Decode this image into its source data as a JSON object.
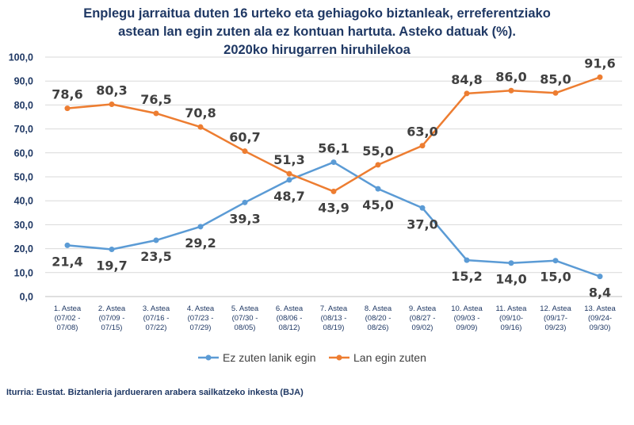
{
  "chart_data": {
    "type": "line",
    "title_lines": [
      "Enplegu jarraitua duten 16 urteko eta gehiagoko biztanleak, erreferentziako",
      "astean lan egin zuten ala ez kontuan hartuta. Asteko datuak (%).",
      "2020ko hirugarren hiruhilekoa"
    ],
    "categories": [
      [
        "1. Astea",
        "(07/02 -",
        "07/08)"
      ],
      [
        "2. Astea",
        "(07/09 -",
        "07/15)"
      ],
      [
        "3. Astea",
        "(07/16 -",
        "07/22)"
      ],
      [
        "4. Astea",
        "(07/23 -",
        "07/29)"
      ],
      [
        "5. Astea",
        "(07/30 -",
        "08/05)"
      ],
      [
        "6. Astea",
        "(08/06 -",
        "08/12)"
      ],
      [
        "7. Astea",
        "(08/13 -",
        "08/19)"
      ],
      [
        "8. Astea",
        "(08/20 -",
        "08/26)"
      ],
      [
        "9. Astea",
        "(08/27 -",
        "09/02)"
      ],
      [
        "10. Astea",
        "(09/03 -",
        "09/09)"
      ],
      [
        "11. Astea",
        "(09/10-",
        "09/16)"
      ],
      [
        "12. Astea",
        "(09/17-",
        "09/23)"
      ],
      [
        "13. Astea",
        "(09/24-",
        "09/30)"
      ]
    ],
    "yticks": [
      "0,0",
      "10,0",
      "20,0",
      "30,0",
      "40,0",
      "50,0",
      "60,0",
      "70,0",
      "80,0",
      "90,0",
      "100,0"
    ],
    "ylim": [
      0,
      100
    ],
    "grid": true,
    "legend_position": "bottom",
    "series": [
      {
        "name": "Ez zuten lanik egin",
        "color": "#5b9bd5",
        "values": [
          21.4,
          19.7,
          23.5,
          29.2,
          39.3,
          48.7,
          56.1,
          45.0,
          37.0,
          15.2,
          14.0,
          15.0,
          8.4
        ],
        "labels": [
          "21,4",
          "19,7",
          "23,5",
          "29,2",
          "39,3",
          "48,7",
          "56,1",
          "45,0",
          "37,0",
          "15,2",
          "14,0",
          "15,0",
          "8,4"
        ]
      },
      {
        "name": "Lan egin zuten",
        "color": "#ed7d31",
        "values": [
          78.6,
          80.3,
          76.5,
          70.8,
          60.7,
          51.3,
          43.9,
          55.0,
          63.0,
          84.8,
          86.0,
          85.0,
          91.6
        ],
        "labels": [
          "78,6",
          "80,3",
          "76,5",
          "70,8",
          "60,7",
          "51,3",
          "43,9",
          "55,0",
          "63,0",
          "84,8",
          "86,0",
          "85,0",
          "91,6"
        ]
      }
    ]
  },
  "source": "Iturria: Eustat. Biztanleria jardueraren arabera sailkatzeko inkesta (BJA)"
}
